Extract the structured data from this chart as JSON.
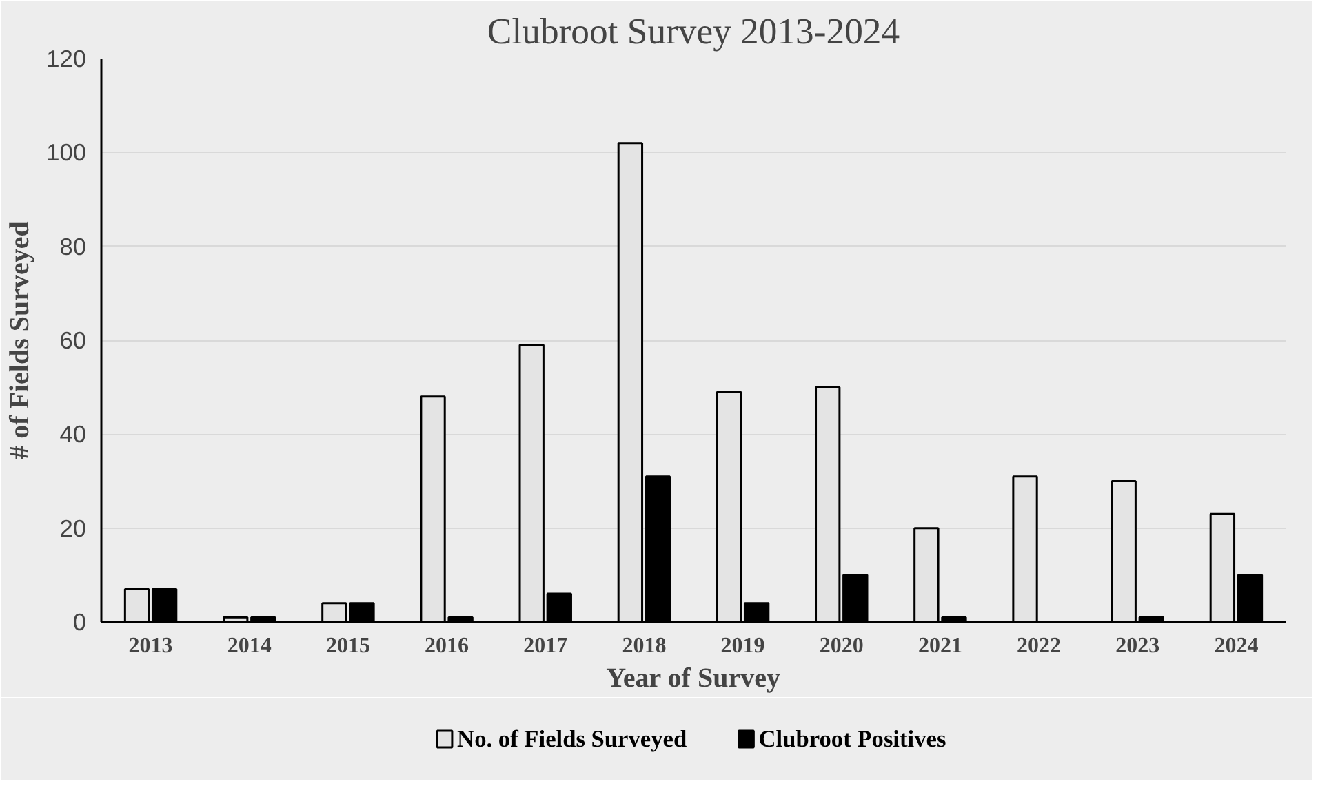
{
  "chart_data": {
    "type": "bar",
    "title": "Clubroot Survey 2013-2024",
    "xlabel": "Year of Survey",
    "ylabel": "# of Fields Surveyed",
    "categories": [
      "2013",
      "2014",
      "2015",
      "2016",
      "2017",
      "2018",
      "2019",
      "2020",
      "2021",
      "2022",
      "2023",
      "2024"
    ],
    "series": [
      {
        "name": "No. of Fields Surveyed",
        "color": "#e4e4e4",
        "values": [
          7,
          1,
          4,
          48,
          59,
          102,
          49,
          50,
          20,
          31,
          30,
          23
        ]
      },
      {
        "name": "Clubroot Positives",
        "color": "#000000",
        "values": [
          7,
          1,
          4,
          1,
          6,
          31,
          4,
          10,
          1,
          0,
          1,
          10
        ]
      }
    ],
    "ylim": [
      0,
      120
    ],
    "yticks": [
      0,
      20,
      40,
      60,
      80,
      100,
      120
    ],
    "grid": "y",
    "legend": "bottom"
  }
}
